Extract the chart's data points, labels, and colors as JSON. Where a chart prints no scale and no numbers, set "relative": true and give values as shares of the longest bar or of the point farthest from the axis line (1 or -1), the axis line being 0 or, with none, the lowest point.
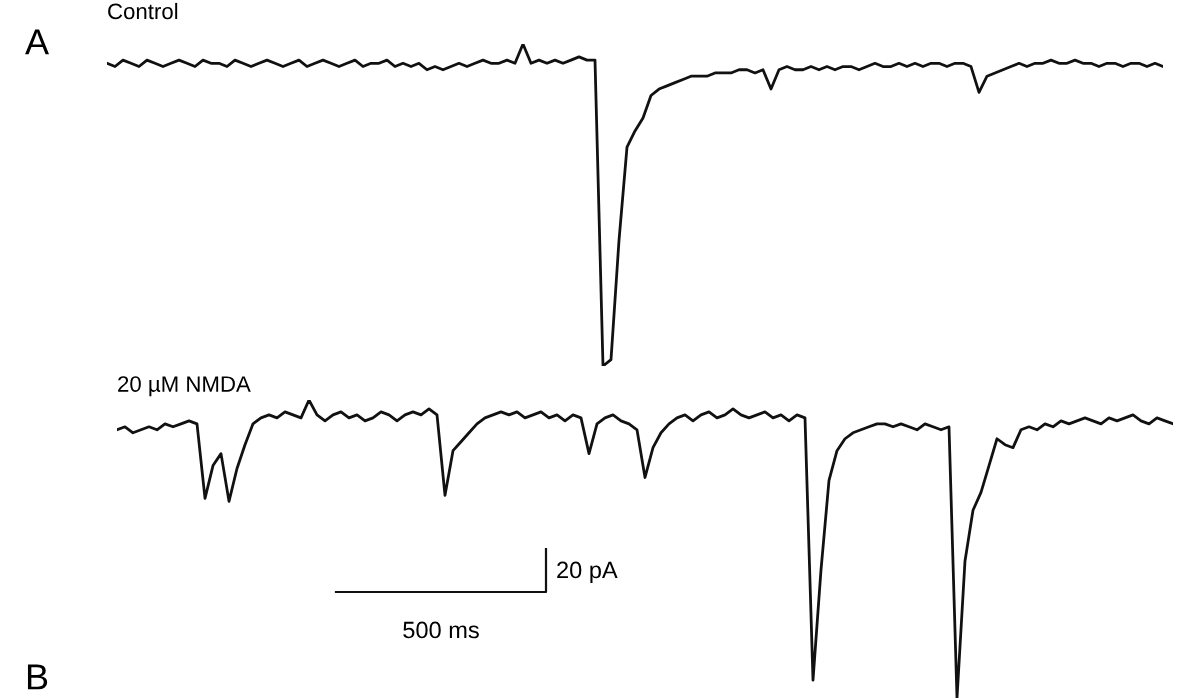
{
  "chart_data": [
    {
      "type": "line",
      "relative": true,
      "title": "Control",
      "color": "#111111",
      "line_style": "solid",
      "annotations": [
        "A"
      ],
      "categories": [
        null,
        null,
        null,
        null,
        null,
        null,
        null,
        null,
        null,
        null,
        null,
        null,
        null,
        null,
        null,
        null,
        null,
        null,
        null,
        null,
        null,
        null,
        null,
        null,
        null,
        null,
        null,
        null,
        null,
        null,
        null,
        null,
        null,
        null,
        null,
        null,
        null,
        null,
        null,
        null,
        null,
        null,
        null,
        null,
        null,
        null,
        null,
        null,
        null,
        null,
        null,
        null,
        null,
        null,
        null,
        null,
        null,
        null,
        null,
        null,
        null,
        null,
        null,
        null,
        null,
        null,
        null,
        null,
        null,
        null,
        null,
        null,
        null,
        null,
        null,
        null,
        null,
        null,
        null,
        null,
        null,
        null,
        null,
        null,
        null,
        null,
        null,
        null,
        null,
        null,
        null,
        null,
        null,
        null,
        null,
        null,
        null,
        null,
        null,
        null,
        null,
        null,
        null,
        null,
        null,
        null,
        null,
        null,
        null,
        null,
        null,
        null,
        null,
        null,
        null,
        null,
        null,
        null,
        null,
        null,
        null,
        null,
        null,
        null,
        null,
        null,
        null,
        null,
        null,
        null,
        null,
        null,
        null
      ],
      "values": [
        0.94,
        0.93,
        0.95,
        0.94,
        0.93,
        0.95,
        0.94,
        0.93,
        0.94,
        0.95,
        0.94,
        0.93,
        0.95,
        0.94,
        0.94,
        0.93,
        0.95,
        0.94,
        0.93,
        0.94,
        0.95,
        0.94,
        0.93,
        0.94,
        0.95,
        0.93,
        0.94,
        0.95,
        0.94,
        0.93,
        0.94,
        0.95,
        0.93,
        0.94,
        0.94,
        0.95,
        0.93,
        0.94,
        0.93,
        0.94,
        0.92,
        0.93,
        0.92,
        0.93,
        0.94,
        0.93,
        0.94,
        0.95,
        0.94,
        0.94,
        0.95,
        0.94,
        1.0,
        0.94,
        0.95,
        0.94,
        0.95,
        0.94,
        0.95,
        0.96,
        0.95,
        0.95,
        0.0,
        0.02,
        0.39,
        0.68,
        0.73,
        0.77,
        0.84,
        0.86,
        0.87,
        0.88,
        0.89,
        0.9,
        0.9,
        0.9,
        0.91,
        0.91,
        0.91,
        0.92,
        0.92,
        0.91,
        0.92,
        0.86,
        0.92,
        0.93,
        0.92,
        0.92,
        0.93,
        0.92,
        0.93,
        0.92,
        0.93,
        0.93,
        0.92,
        0.93,
        0.94,
        0.93,
        0.93,
        0.94,
        0.93,
        0.94,
        0.93,
        0.94,
        0.94,
        0.93,
        0.94,
        0.94,
        0.93,
        0.85,
        0.9,
        0.91,
        0.92,
        0.93,
        0.94,
        0.93,
        0.94,
        0.94,
        0.95,
        0.94,
        0.94,
        0.95,
        0.94,
        0.94,
        0.93,
        0.94,
        0.94,
        0.93,
        0.94,
        0.94,
        0.93,
        0.94,
        0.93
      ]
    },
    {
      "type": "line",
      "relative": true,
      "title": "20 µM NMDA",
      "color": "#111111",
      "line_style": "solid",
      "annotations": [
        "B",
        "20 pA",
        "500 ms"
      ],
      "categories": [
        null,
        null,
        null,
        null,
        null,
        null,
        null,
        null,
        null,
        null,
        null,
        null,
        null,
        null,
        null,
        null,
        null,
        null,
        null,
        null,
        null,
        null,
        null,
        null,
        null,
        null,
        null,
        null,
        null,
        null,
        null,
        null,
        null,
        null,
        null,
        null,
        null,
        null,
        null,
        null,
        null,
        null,
        null,
        null,
        null,
        null,
        null,
        null,
        null,
        null,
        null,
        null,
        null,
        null,
        null,
        null,
        null,
        null,
        null,
        null,
        null,
        null,
        null,
        null,
        null,
        null,
        null,
        null,
        null,
        null,
        null,
        null,
        null,
        null,
        null,
        null,
        null,
        null,
        null,
        null,
        null,
        null,
        null,
        null,
        null,
        null,
        null,
        null,
        null,
        null,
        null,
        null,
        null,
        null,
        null,
        null,
        null,
        null,
        null,
        null,
        null,
        null,
        null,
        null,
        null,
        null,
        null,
        null,
        null,
        null,
        null,
        null,
        null,
        null,
        null,
        null,
        null,
        null,
        null,
        null,
        null,
        null,
        null,
        null,
        null,
        null,
        null,
        null,
        null,
        null,
        null,
        null,
        null
      ],
      "values": [
        0.9,
        0.91,
        0.89,
        0.9,
        0.91,
        0.9,
        0.92,
        0.91,
        0.92,
        0.93,
        0.92,
        0.67,
        0.78,
        0.82,
        0.66,
        0.77,
        0.85,
        0.92,
        0.94,
        0.95,
        0.94,
        0.96,
        0.95,
        0.94,
        1.0,
        0.95,
        0.93,
        0.95,
        0.96,
        0.94,
        0.95,
        0.93,
        0.94,
        0.96,
        0.95,
        0.93,
        0.95,
        0.96,
        0.95,
        0.97,
        0.95,
        0.68,
        0.83,
        0.86,
        0.89,
        0.92,
        0.94,
        0.95,
        0.96,
        0.95,
        0.96,
        0.94,
        0.95,
        0.96,
        0.94,
        0.95,
        0.93,
        0.95,
        0.94,
        0.82,
        0.92,
        0.94,
        0.95,
        0.93,
        0.92,
        0.9,
        0.74,
        0.84,
        0.89,
        0.92,
        0.94,
        0.95,
        0.93,
        0.95,
        0.96,
        0.94,
        0.95,
        0.97,
        0.95,
        0.94,
        0.95,
        0.96,
        0.94,
        0.95,
        0.93,
        0.95,
        0.94,
        0.06,
        0.43,
        0.73,
        0.83,
        0.87,
        0.89,
        0.9,
        0.91,
        0.92,
        0.92,
        0.91,
        0.92,
        0.91,
        0.9,
        0.92,
        0.91,
        0.9,
        0.91,
        0.0,
        0.46,
        0.63,
        0.69,
        0.78,
        0.87,
        0.85,
        0.84,
        0.9,
        0.91,
        0.9,
        0.92,
        0.91,
        0.93,
        0.92,
        0.93,
        0.94,
        0.93,
        0.92,
        0.94,
        0.93,
        0.94,
        0.95,
        0.93,
        0.92,
        0.94,
        0.93,
        0.92
      ]
    }
  ]
}
